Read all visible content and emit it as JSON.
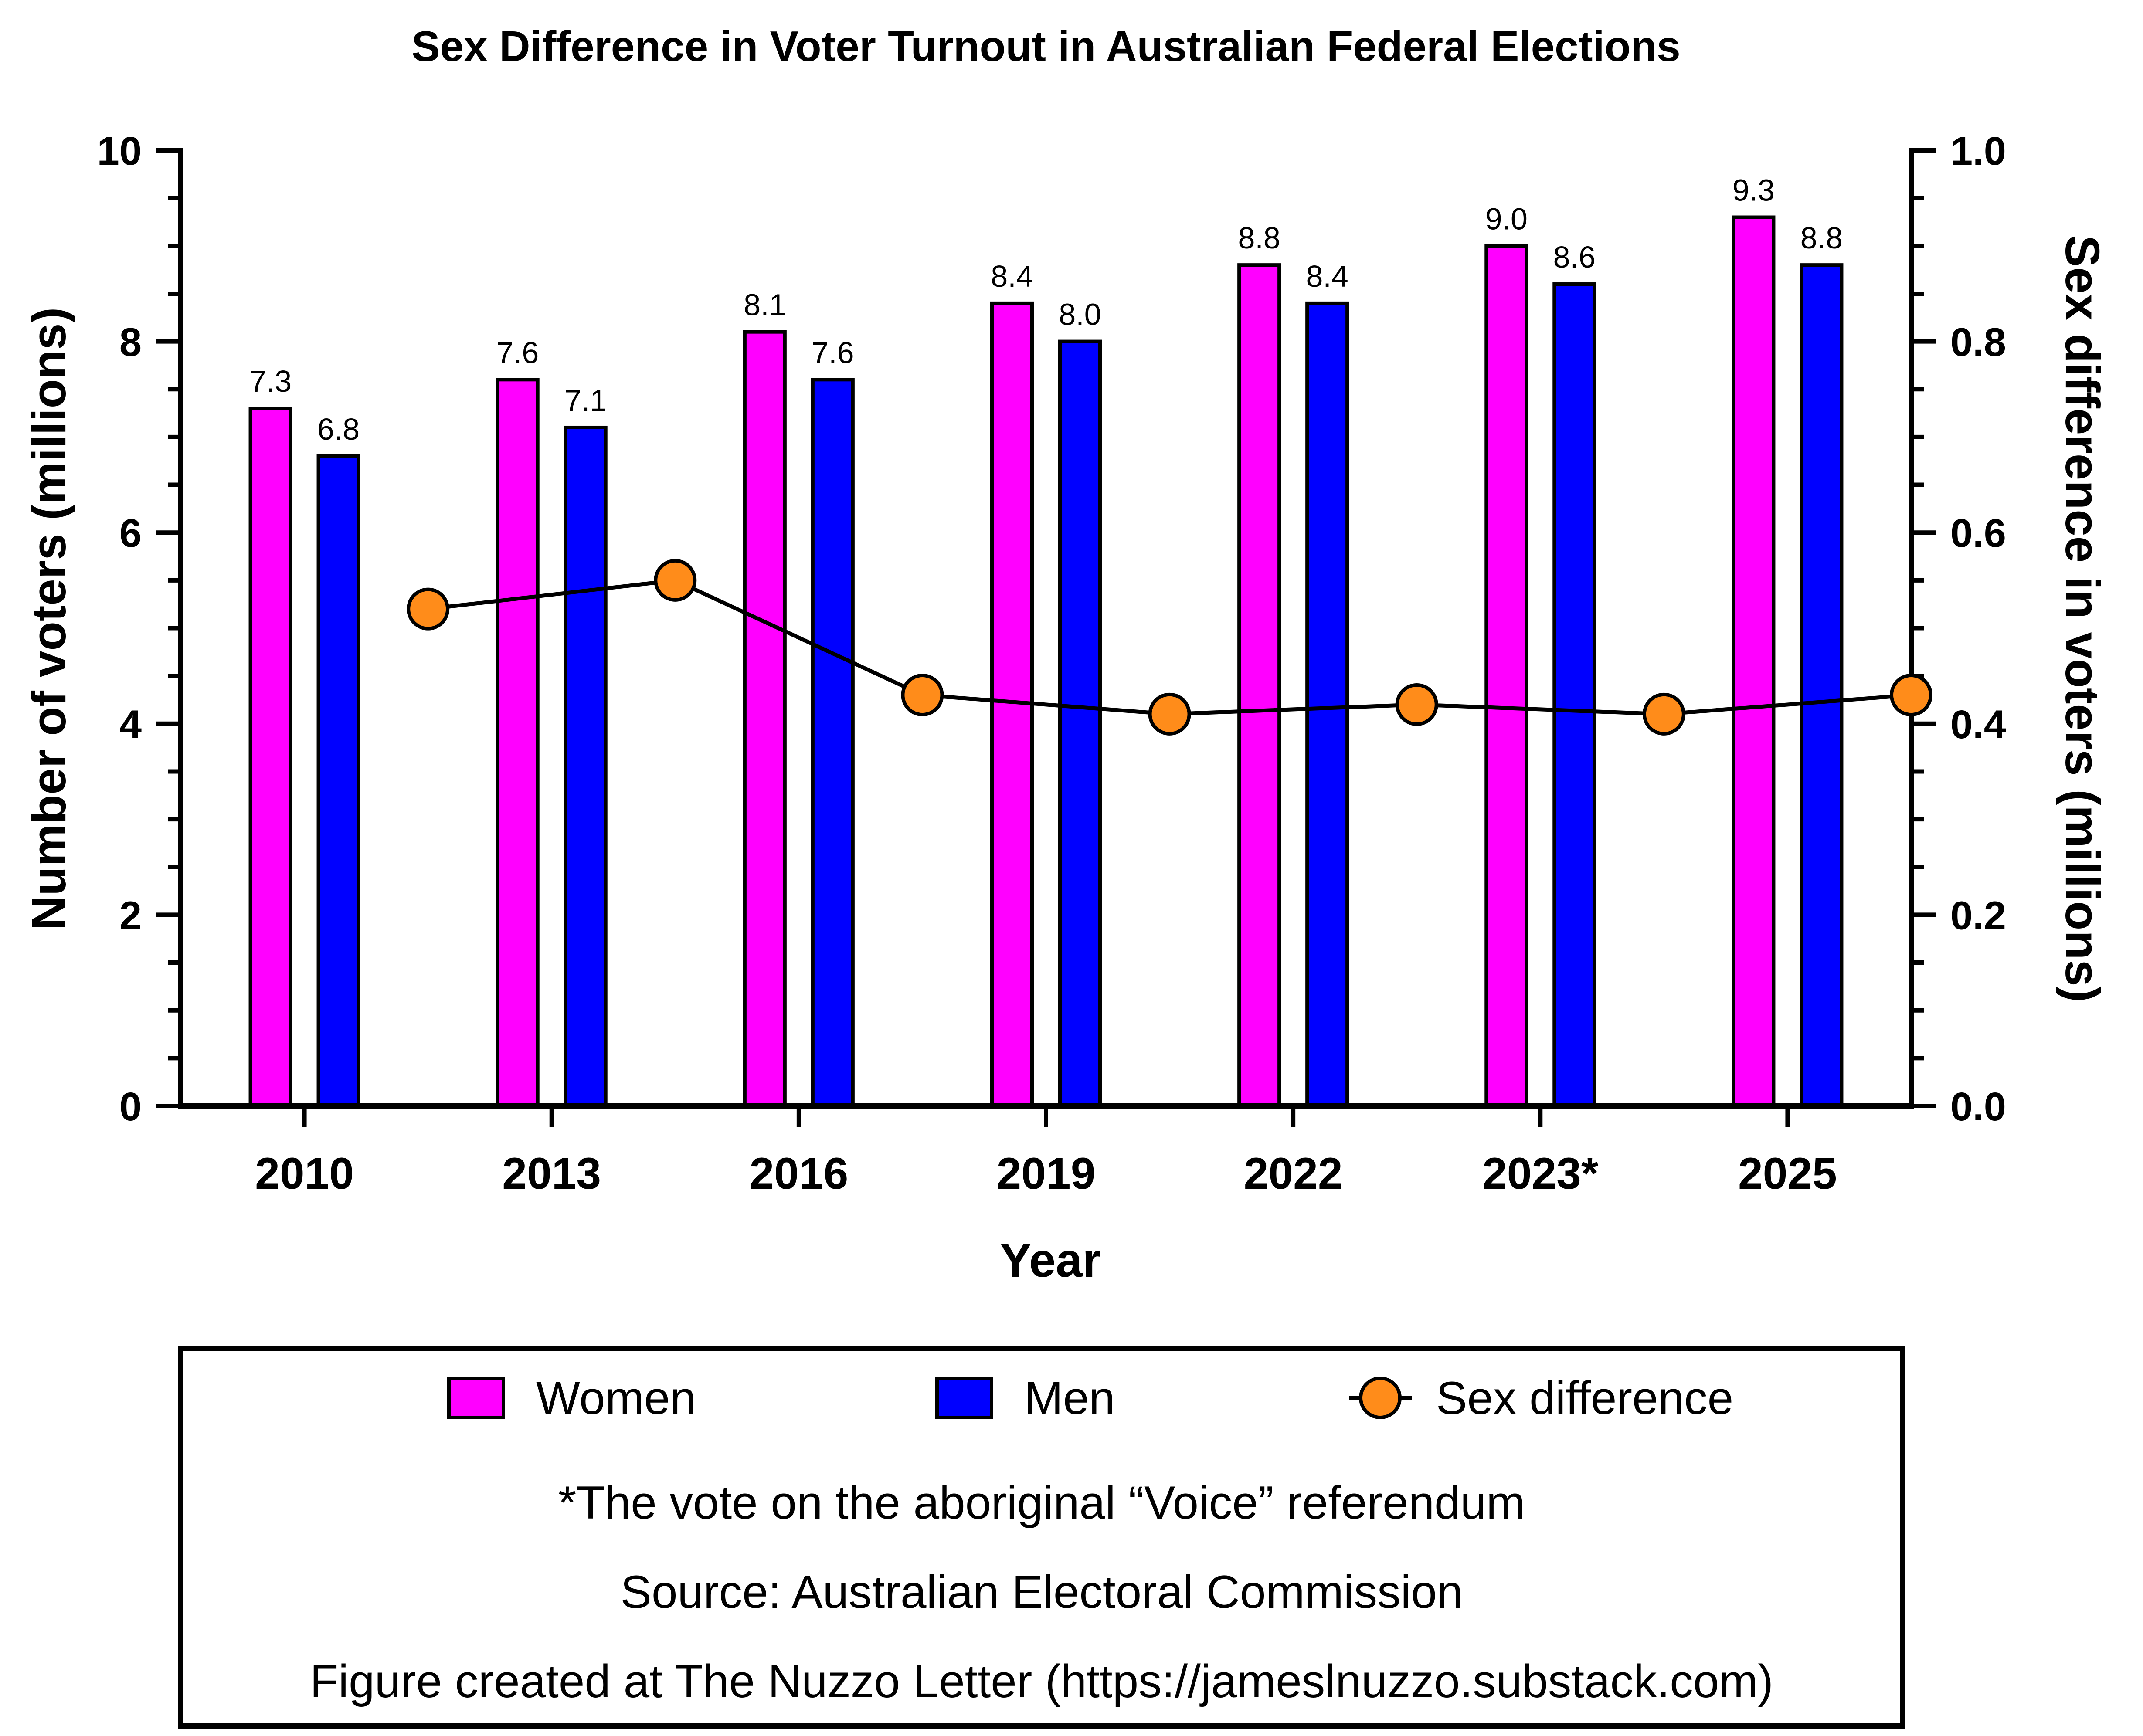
{
  "chart_data": {
    "type": "bar",
    "title": "Sex Difference in Voter Turnout in Australian Federal Elections",
    "xlabel": "Year",
    "ylabel": "Number of voters (millions)",
    "y2label": "Sex difference in voters (millions)",
    "categories": [
      "2010",
      "2013",
      "2016",
      "2019",
      "2022",
      "2023*",
      "2025"
    ],
    "ylim": [
      0,
      10
    ],
    "y2lim": [
      0.0,
      1.0
    ],
    "yticks": [
      "0",
      "2",
      "4",
      "6",
      "8",
      "10"
    ],
    "y2ticks": [
      "0.0",
      "0.2",
      "0.4",
      "0.6",
      "0.8",
      "1.0"
    ],
    "series": [
      {
        "name": "Women",
        "type": "bar",
        "axis": "left",
        "color": "#FF00FF",
        "values": [
          7.3,
          7.6,
          8.1,
          8.4,
          8.8,
          9.0,
          9.3
        ],
        "labels": [
          "7.3",
          "7.6",
          "8.1",
          "8.4",
          "8.8",
          "9.0",
          "9.3"
        ]
      },
      {
        "name": "Men",
        "type": "bar",
        "axis": "right-of-pair",
        "color": "#0000FF",
        "values": [
          6.8,
          7.1,
          7.6,
          8.0,
          8.4,
          8.6,
          8.8
        ],
        "labels": [
          "6.8",
          "7.1",
          "7.6",
          "8.0",
          "8.4",
          "8.6",
          "8.8"
        ]
      },
      {
        "name": "Sex difference",
        "type": "line",
        "axis": "right",
        "color": "#FF8C1A",
        "values": [
          0.52,
          0.55,
          0.43,
          0.41,
          0.42,
          0.41,
          0.43
        ]
      }
    ],
    "grid": false,
    "legend_position": "bottom"
  },
  "notes": [
    "*The vote on the aboriginal “Voice” referendum",
    "Source: Australian Electoral Commission",
    "Figure created at The Nuzzo Letter (https://jameslnuzzo.substack.com)"
  ]
}
